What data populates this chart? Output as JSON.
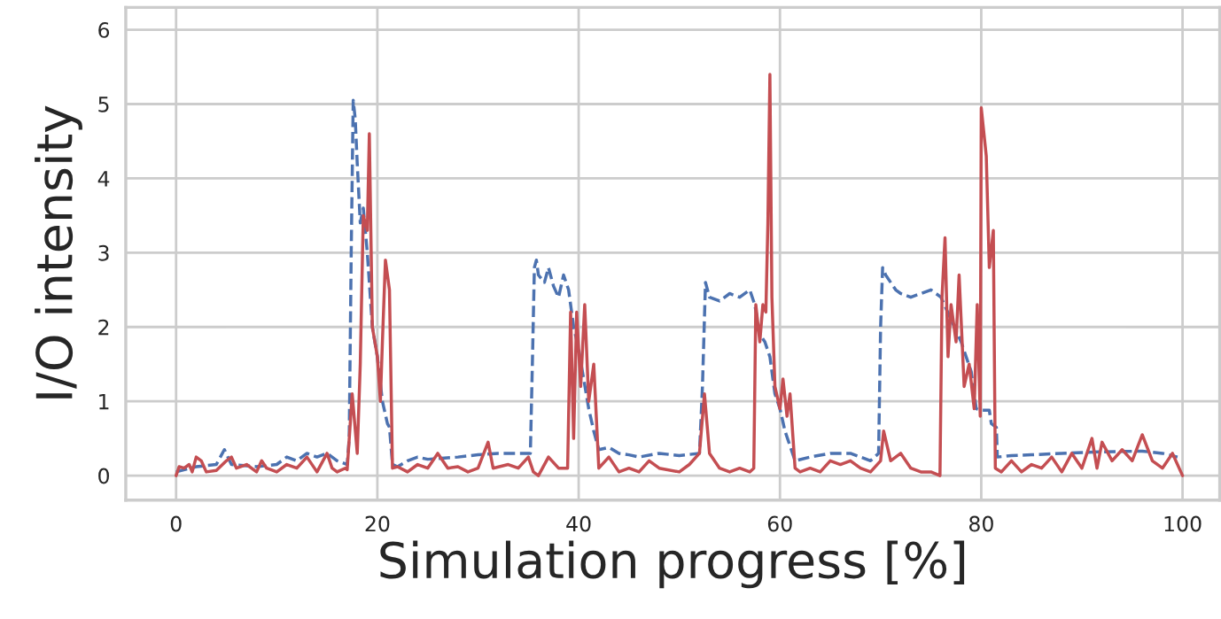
{
  "chart_data": {
    "type": "line",
    "xlabel": "Simulation progress [%]",
    "ylabel": "I/O intensity",
    "xlim": [
      -5,
      103.7
    ],
    "ylim": [
      -0.33,
      6.3
    ],
    "xticks": [
      0,
      20,
      40,
      60,
      80,
      100
    ],
    "yticks": [
      0,
      1,
      2,
      3,
      4,
      5,
      6
    ],
    "grid": true,
    "series": [
      {
        "color": "#4c72b0",
        "line_style": "dashed",
        "x": [
          0,
          2,
          4,
          4.8,
          5.5,
          8,
          10,
          11,
          12,
          13,
          14,
          15,
          16,
          17,
          17.2,
          17.4,
          17.6,
          17.8,
          18,
          18.3,
          18.6,
          19,
          19.5,
          20,
          20.5,
          21,
          21.2,
          21.5,
          22,
          23,
          24,
          25,
          28,
          30,
          32,
          34,
          35.2,
          35.4,
          35.6,
          35.8,
          36,
          36.6,
          37,
          37.5,
          38,
          38.5,
          39,
          39.5,
          40,
          40.5,
          41,
          41.5,
          42,
          43,
          44,
          45,
          46,
          48,
          50,
          52,
          52.3,
          52.6,
          53,
          54,
          55,
          56,
          57,
          57.5,
          58,
          58.5,
          59,
          59.5,
          60,
          60.5,
          61,
          61.5,
          63,
          65,
          67,
          69,
          69.8,
          70,
          70.2,
          70.5,
          71,
          71.5,
          72,
          73,
          74,
          75,
          76,
          77,
          78,
          79,
          79.5,
          80,
          80.8,
          81,
          81.5,
          81.6,
          83,
          85,
          88,
          92,
          96,
          98,
          99.5
        ],
        "values": [
          0.05,
          0.12,
          0.15,
          0.35,
          0.15,
          0.12,
          0.15,
          0.25,
          0.2,
          0.3,
          0.25,
          0.3,
          0.2,
          0.15,
          0.5,
          3.0,
          5.05,
          4.8,
          4.2,
          3.4,
          3.6,
          3.0,
          2.0,
          1.6,
          1.0,
          0.7,
          0.65,
          0.15,
          0.12,
          0.2,
          0.25,
          0.22,
          0.25,
          0.28,
          0.3,
          0.3,
          0.3,
          1.5,
          2.8,
          2.9,
          2.7,
          2.6,
          2.8,
          2.55,
          2.4,
          2.7,
          2.5,
          2.0,
          1.7,
          1.3,
          0.9,
          0.6,
          0.35,
          0.38,
          0.3,
          0.28,
          0.25,
          0.3,
          0.27,
          0.3,
          1.2,
          2.6,
          2.4,
          2.35,
          2.45,
          2.4,
          2.5,
          2.3,
          1.9,
          1.8,
          1.6,
          1.1,
          0.9,
          0.6,
          0.4,
          0.2,
          0.25,
          0.3,
          0.3,
          0.2,
          0.3,
          2.0,
          2.8,
          2.7,
          2.6,
          2.5,
          2.45,
          2.4,
          2.45,
          2.5,
          2.4,
          2.1,
          1.8,
          1.4,
          0.9,
          0.88,
          0.88,
          0.7,
          0.65,
          0.25,
          0.27,
          0.28,
          0.3,
          0.32,
          0.33,
          0.3,
          0.25
        ]
      },
      {
        "color": "#c44e52",
        "line_style": "solid",
        "x": [
          0,
          0.3,
          0.8,
          1.3,
          1.6,
          2,
          2.5,
          3,
          4,
          5,
          5.5,
          6,
          7,
          8,
          8.5,
          9,
          10,
          11,
          12,
          13,
          14,
          15,
          15.5,
          16,
          16.8,
          17,
          17.5,
          18,
          18.3,
          18.6,
          19,
          19.2,
          19.5,
          20,
          20.3,
          20.5,
          20.8,
          21.2,
          21.5,
          22,
          23,
          24,
          25,
          26,
          27,
          28,
          29,
          30,
          31,
          31.5,
          33,
          34,
          35,
          35.5,
          36,
          37,
          38,
          38.9,
          39.2,
          39.5,
          39.8,
          40.2,
          40.6,
          41,
          41.5,
          42,
          43,
          44,
          45,
          46,
          47,
          48,
          50,
          51,
          52,
          52.5,
          53,
          54,
          55,
          56,
          57,
          57.4,
          57.6,
          58,
          58.3,
          58.6,
          58.8,
          59,
          59.2,
          59.5,
          60,
          60.3,
          60.7,
          61,
          61.5,
          62,
          63,
          64,
          65,
          66,
          67,
          68,
          69,
          70,
          70.3,
          71,
          72,
          73,
          74,
          75,
          75.9,
          76.1,
          76.4,
          76.7,
          77,
          77.5,
          77.8,
          78.3,
          78.8,
          79.3,
          79.6,
          79.9,
          80,
          80.5,
          80.8,
          81.2,
          81.4,
          82,
          83,
          84,
          85,
          86,
          87,
          88,
          89,
          90,
          91,
          91.5,
          92,
          93,
          94,
          95,
          96,
          97,
          98,
          99,
          100
        ],
        "values": [
          0.0,
          0.12,
          0.1,
          0.15,
          0.05,
          0.25,
          0.2,
          0.05,
          0.07,
          0.2,
          0.25,
          0.1,
          0.15,
          0.05,
          0.2,
          0.1,
          0.05,
          0.15,
          0.1,
          0.25,
          0.05,
          0.3,
          0.1,
          0.05,
          0.1,
          0.08,
          1.1,
          0.3,
          1.5,
          3.5,
          3.3,
          4.6,
          2.0,
          1.6,
          1.0,
          1.8,
          2.9,
          2.5,
          0.1,
          0.12,
          0.05,
          0.15,
          0.1,
          0.3,
          0.1,
          0.12,
          0.05,
          0.1,
          0.45,
          0.1,
          0.15,
          0.1,
          0.25,
          0.05,
          0.0,
          0.25,
          0.1,
          0.1,
          2.2,
          0.5,
          2.2,
          1.2,
          2.3,
          1.0,
          1.5,
          0.1,
          0.25,
          0.05,
          0.1,
          0.05,
          0.2,
          0.1,
          0.05,
          0.15,
          0.3,
          1.1,
          0.3,
          0.1,
          0.05,
          0.1,
          0.05,
          0.1,
          2.3,
          1.8,
          2.3,
          2.2,
          3.4,
          5.4,
          2.4,
          1.2,
          0.9,
          1.3,
          0.8,
          1.1,
          0.1,
          0.05,
          0.1,
          0.05,
          0.2,
          0.15,
          0.2,
          0.1,
          0.05,
          0.2,
          0.6,
          0.2,
          0.3,
          0.1,
          0.05,
          0.05,
          0.0,
          2.4,
          3.2,
          1.6,
          2.3,
          1.8,
          2.7,
          1.2,
          1.5,
          0.9,
          2.3,
          0.8,
          4.95,
          4.3,
          2.8,
          3.3,
          0.1,
          0.05,
          0.2,
          0.05,
          0.15,
          0.1,
          0.25,
          0.05,
          0.3,
          0.1,
          0.5,
          0.1,
          0.45,
          0.2,
          0.35,
          0.2,
          0.55,
          0.2,
          0.1,
          0.3,
          0.0
        ]
      }
    ]
  }
}
